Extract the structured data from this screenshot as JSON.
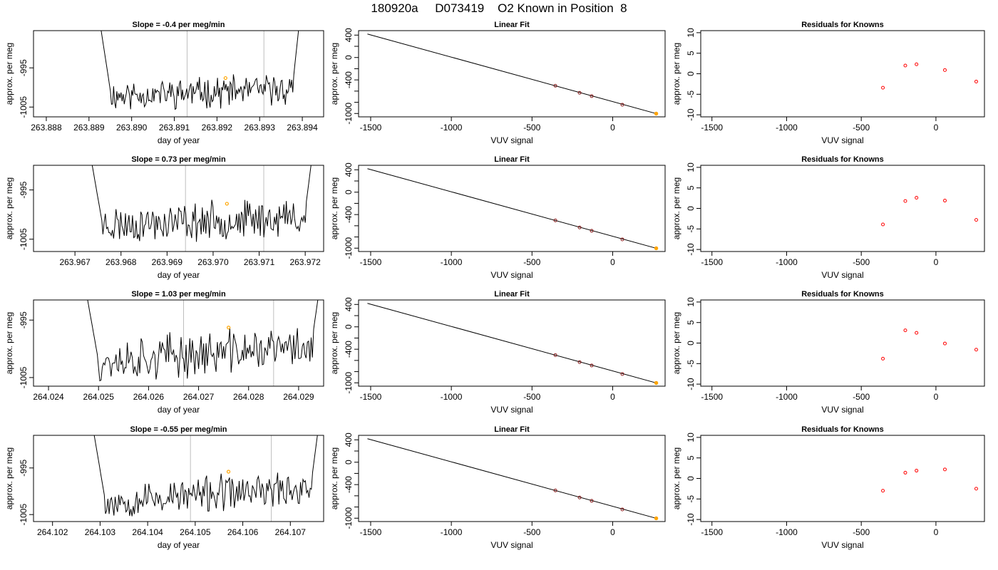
{
  "header": {
    "title": "180920a     D073419    O2 Known in Position  8"
  },
  "colors": {
    "trace": "#000000",
    "vertical_marker": "#bebebe",
    "highlight_point": "#ffa500",
    "residual_point": "#ff0000",
    "fit_point": "#8b1a1a"
  },
  "labels": {
    "time_xlabel": "day of year",
    "ylabel": "approx. per meg",
    "fit_title": "Linear Fit",
    "vuv_xlabel": "VUV signal",
    "resid_title": "Residuals for Knowns"
  },
  "chart_data": [
    {
      "type": "line",
      "title": "Slope =  -0.4  per meg/min",
      "xlabel": "day of year",
      "ylabel": "approx. per meg",
      "xlim": [
        263.8877,
        263.8945
      ],
      "ylim": [
        -1007.5,
        -985.5
      ],
      "xticks": [
        "263.888",
        "263.889",
        "263.890",
        "263.891",
        "263.892",
        "263.893",
        "263.894"
      ],
      "xtick_values": [
        263.888,
        263.889,
        263.89,
        263.891,
        263.892,
        263.893,
        263.894
      ],
      "yticks": [
        "-995",
        "-1005"
      ],
      "ytick_values": [
        -995,
        -1005
      ],
      "x_start": 263.88923,
      "x_end": 263.89395,
      "vlines": [
        263.8913,
        263.8931
      ],
      "highlight": {
        "x": 263.8922,
        "y": -997.6
      },
      "seed": 11
    },
    {
      "type": "line",
      "title": "Slope =  0.73  per meg/min",
      "xlabel": "day of year",
      "ylabel": "approx. per meg",
      "xlim": [
        263.9661,
        263.9724
      ],
      "ylim": [
        -1007.5,
        -990.0
      ],
      "xticks": [
        "263.967",
        "263.968",
        "263.969",
        "263.970",
        "263.971",
        "263.972"
      ],
      "xtick_values": [
        263.967,
        263.968,
        263.969,
        263.97,
        263.971,
        263.972
      ],
      "yticks": [
        "-995",
        "-1005"
      ],
      "ytick_values": [
        -995,
        -1005
      ],
      "x_start": 263.9673,
      "x_end": 263.97218,
      "vlines": [
        263.9694,
        263.9711
      ],
      "highlight": {
        "x": 263.9703,
        "y": -997.8
      },
      "seed": 23
    },
    {
      "type": "line",
      "title": "Slope =  1.03  per meg/min",
      "xlabel": "day of year",
      "ylabel": "approx. per meg",
      "xlim": [
        264.0237,
        264.0295
      ],
      "ylim": [
        -1006.5,
        -991.5
      ],
      "xticks": [
        "264.024",
        "264.025",
        "264.026",
        "264.027",
        "264.028",
        "264.029"
      ],
      "xtick_values": [
        264.024,
        264.025,
        264.026,
        264.027,
        264.028,
        264.029
      ],
      "yticks": [
        "-995",
        "-1005"
      ],
      "ytick_values": [
        -995,
        -1005
      ],
      "x_start": 264.0247,
      "x_end": 264.02945,
      "vlines": [
        264.0267,
        264.0285
      ],
      "highlight": {
        "x": 264.0276,
        "y": -996.3
      },
      "seed": 37
    },
    {
      "type": "line",
      "title": "Slope =  -0.55  per meg/min",
      "xlabel": "day of year",
      "ylabel": "approx. per meg",
      "xlim": [
        264.1016,
        264.1077
      ],
      "ylim": [
        -1006.5,
        -988.0
      ],
      "xticks": [
        "264.102",
        "264.103",
        "264.104",
        "264.105",
        "264.106",
        "264.107"
      ],
      "xtick_values": [
        264.102,
        264.103,
        264.104,
        264.105,
        264.106,
        264.107
      ],
      "yticks": [
        "-995",
        "-1005"
      ],
      "ytick_values": [
        -995,
        -1005
      ],
      "x_start": 264.10281,
      "x_end": 264.10762,
      "vlines": [
        264.1049,
        264.1066
      ],
      "highlight": {
        "x": 264.1057,
        "y": -995.8
      },
      "seed": 53
    },
    {
      "type": "scatter",
      "title": "Linear Fit",
      "xlabel": "VUV signal",
      "ylabel": "approx. per meg",
      "xlim": [
        -1575,
        325
      ],
      "ylim": [
        -1060,
        480
      ],
      "xticks": [
        "-1500",
        "-1000",
        "-500",
        "0"
      ],
      "xtick_values": [
        -1500,
        -1000,
        -500,
        0
      ],
      "yticks": [
        "400",
        "0",
        "-400",
        "-1000"
      ],
      "ytick_values": [
        400,
        0,
        -400,
        -1000
      ],
      "minor_yticks": [
        200,
        -200,
        -600,
        -800
      ],
      "line": {
        "x": [
          -1520,
          270
        ],
        "y": [
          420,
          -1002
        ]
      },
      "points": [
        {
          "x": -355,
          "y": -505
        },
        {
          "x": -205,
          "y": -630
        },
        {
          "x": -130,
          "y": -690
        },
        {
          "x": 60,
          "y": -843
        },
        {
          "x": 270,
          "y": -1002
        }
      ],
      "highlight": {
        "x": 270,
        "y": -1002
      }
    },
    {
      "type": "scatter",
      "title": "Linear Fit",
      "xlabel": "VUV signal",
      "ylabel": "approx. per meg",
      "xlim": [
        -1575,
        325
      ],
      "ylim": [
        -1060,
        480
      ],
      "xticks": [
        "-1500",
        "-1000",
        "-500",
        "0"
      ],
      "xtick_values": [
        -1500,
        -1000,
        -500,
        0
      ],
      "yticks": [
        "400",
        "0",
        "-400",
        "-1000"
      ],
      "ytick_values": [
        400,
        0,
        -400,
        -1000
      ],
      "minor_yticks": [
        200,
        -200,
        -600,
        -800
      ],
      "line": {
        "x": [
          -1520,
          270
        ],
        "y": [
          420,
          -1002
        ]
      },
      "points": [
        {
          "x": -355,
          "y": -505
        },
        {
          "x": -205,
          "y": -630
        },
        {
          "x": -130,
          "y": -690
        },
        {
          "x": 60,
          "y": -843
        },
        {
          "x": 270,
          "y": -1002
        }
      ],
      "highlight": {
        "x": 270,
        "y": -1002
      }
    },
    {
      "type": "scatter",
      "title": "Linear Fit",
      "xlabel": "VUV signal",
      "ylabel": "approx. per meg",
      "xlim": [
        -1575,
        325
      ],
      "ylim": [
        -1060,
        480
      ],
      "xticks": [
        "-1500",
        "-1000",
        "-500",
        "0"
      ],
      "xtick_values": [
        -1500,
        -1000,
        -500,
        0
      ],
      "yticks": [
        "400",
        "0",
        "-400",
        "-1000"
      ],
      "ytick_values": [
        400,
        0,
        -400,
        -1000
      ],
      "minor_yticks": [
        200,
        -200,
        -600,
        -800
      ],
      "line": {
        "x": [
          -1520,
          270
        ],
        "y": [
          420,
          -1002
        ]
      },
      "points": [
        {
          "x": -355,
          "y": -505
        },
        {
          "x": -205,
          "y": -630
        },
        {
          "x": -130,
          "y": -690
        },
        {
          "x": 60,
          "y": -843
        },
        {
          "x": 270,
          "y": -1002
        }
      ],
      "highlight": {
        "x": 270,
        "y": -1002
      }
    },
    {
      "type": "scatter",
      "title": "Linear Fit",
      "xlabel": "VUV signal",
      "ylabel": "approx. per meg",
      "xlim": [
        -1575,
        325
      ],
      "ylim": [
        -1060,
        480
      ],
      "xticks": [
        "-1500",
        "-1000",
        "-500",
        "0"
      ],
      "xtick_values": [
        -1500,
        -1000,
        -500,
        0
      ],
      "yticks": [
        "400",
        "0",
        "-400",
        "-1000"
      ],
      "ytick_values": [
        400,
        0,
        -400,
        -1000
      ],
      "minor_yticks": [
        200,
        -200,
        -600,
        -800
      ],
      "line": {
        "x": [
          -1520,
          270
        ],
        "y": [
          420,
          -1002
        ]
      },
      "points": [
        {
          "x": -355,
          "y": -505
        },
        {
          "x": -205,
          "y": -630
        },
        {
          "x": -130,
          "y": -690
        },
        {
          "x": 60,
          "y": -843
        },
        {
          "x": 270,
          "y": -1002
        }
      ],
      "highlight": {
        "x": 270,
        "y": -1002
      }
    },
    {
      "type": "scatter",
      "title": "Residuals for Knowns",
      "xlabel": "VUV signal",
      "ylabel": "approx. per meg",
      "xlim": [
        -1575,
        325
      ],
      "ylim": [
        -10.5,
        10.5
      ],
      "xticks": [
        "-1500",
        "-1000",
        "-500",
        "0"
      ],
      "xtick_values": [
        -1500,
        -1000,
        -500,
        0
      ],
      "yticks": [
        "10",
        "5",
        "0",
        "-5",
        "-10"
      ],
      "ytick_values": [
        10,
        5,
        0,
        -5,
        -10
      ],
      "points": [
        {
          "x": -355,
          "y": -3.4
        },
        {
          "x": -205,
          "y": 2.0
        },
        {
          "x": -130,
          "y": 2.3
        },
        {
          "x": 60,
          "y": 0.9
        },
        {
          "x": 270,
          "y": -1.9
        }
      ]
    },
    {
      "type": "scatter",
      "title": "Residuals for Knowns",
      "xlabel": "VUV signal",
      "ylabel": "approx. per meg",
      "xlim": [
        -1575,
        325
      ],
      "ylim": [
        -10.5,
        10.5
      ],
      "xticks": [
        "-1500",
        "-1000",
        "-500",
        "0"
      ],
      "xtick_values": [
        -1500,
        -1000,
        -500,
        0
      ],
      "yticks": [
        "10",
        "5",
        "0",
        "-5",
        "-10"
      ],
      "ytick_values": [
        10,
        5,
        0,
        -5,
        -10
      ],
      "points": [
        {
          "x": -355,
          "y": -3.9
        },
        {
          "x": -205,
          "y": 1.8
        },
        {
          "x": -130,
          "y": 2.6
        },
        {
          "x": 60,
          "y": 1.9
        },
        {
          "x": 270,
          "y": -2.8
        }
      ]
    },
    {
      "type": "scatter",
      "title": "Residuals for Knowns",
      "xlabel": "VUV signal",
      "ylabel": "approx. per meg",
      "xlim": [
        -1575,
        325
      ],
      "ylim": [
        -10.5,
        10.5
      ],
      "xticks": [
        "-1500",
        "-1000",
        "-500",
        "0"
      ],
      "xtick_values": [
        -1500,
        -1000,
        -500,
        0
      ],
      "yticks": [
        "10",
        "5",
        "0",
        "-5",
        "-10"
      ],
      "ytick_values": [
        10,
        5,
        0,
        -5,
        -10
      ],
      "points": [
        {
          "x": -355,
          "y": -3.8
        },
        {
          "x": -205,
          "y": 3.1
        },
        {
          "x": -130,
          "y": 2.5
        },
        {
          "x": 60,
          "y": -0.1
        },
        {
          "x": 270,
          "y": -1.6
        }
      ]
    },
    {
      "type": "scatter",
      "title": "Residuals for Knowns",
      "xlabel": "VUV signal",
      "ylabel": "approx. per meg",
      "xlim": [
        -1575,
        325
      ],
      "ylim": [
        -10.5,
        10.5
      ],
      "xticks": [
        "-1500",
        "-1000",
        "-500",
        "0"
      ],
      "xtick_values": [
        -1500,
        -1000,
        -500,
        0
      ],
      "yticks": [
        "10",
        "5",
        "0",
        "-5",
        "-10"
      ],
      "ytick_values": [
        10,
        5,
        0,
        -5,
        -10
      ],
      "points": [
        {
          "x": -355,
          "y": -3.0
        },
        {
          "x": -205,
          "y": 1.4
        },
        {
          "x": -130,
          "y": 1.9
        },
        {
          "x": 60,
          "y": 2.2
        },
        {
          "x": 270,
          "y": -2.5
        }
      ]
    }
  ]
}
